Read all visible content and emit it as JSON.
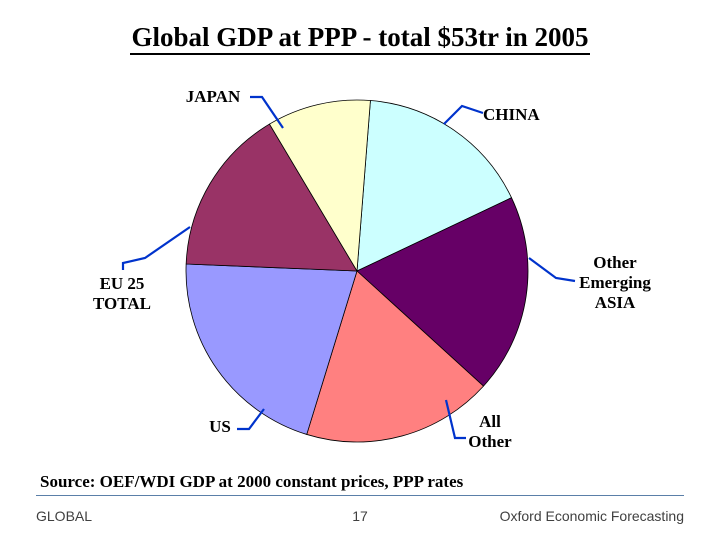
{
  "slide": {
    "title": "Global GDP at PPP - total $53tr in 2005",
    "source": "Source: OEF/WDI GDP  at 2000 constant prices, PPP rates"
  },
  "footer": {
    "left": "GLOBAL",
    "page_number": "17",
    "right": "Oxford Economic Forecasting"
  },
  "chart_data": {
    "type": "pie",
    "title": "Global GDP at PPP - total $53tr in 2005",
    "unit": "share of global GDP (%)",
    "slices": [
      {
        "label": "CHINA",
        "value": 16.7,
        "color": "#ccffff"
      },
      {
        "label": "Other Emerging ASIA",
        "value": 18.8,
        "color": "#660066"
      },
      {
        "label": "All Other",
        "value": 18.0,
        "color": "#ff8080"
      },
      {
        "label": "US",
        "value": 20.9,
        "color": "#9999ff"
      },
      {
        "label": "EU 25 TOTAL",
        "value": 15.8,
        "color": "#993366"
      },
      {
        "label": "JAPAN",
        "value": 9.8,
        "color": "#ffffcc"
      }
    ],
    "label_lines": [
      [
        "CHINA"
      ],
      [
        "Other",
        "Emerging",
        "ASIA"
      ],
      [
        "All",
        "Other"
      ],
      [
        "US"
      ],
      [
        "EU 25",
        "TOTAL"
      ],
      [
        "JAPAN"
      ]
    ],
    "leader_color": "#0033cc",
    "start_angle_deg": 4.5,
    "direction": "clockwise"
  }
}
